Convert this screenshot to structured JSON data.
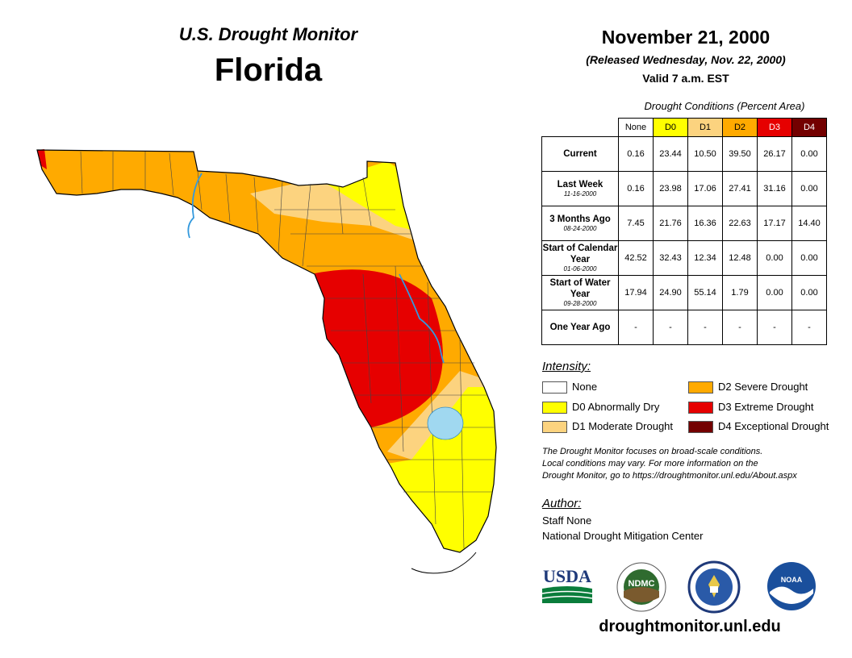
{
  "header": {
    "monitor_title": "U.S. Drought Monitor",
    "state": "Florida",
    "date": "November 21, 2000",
    "released": "(Released Wednesday, Nov. 22, 2000)",
    "valid": "Valid 7 a.m. EST"
  },
  "table": {
    "caption": "Drought Conditions (Percent Area)",
    "columns": [
      "None",
      "D0",
      "D1",
      "D2",
      "D3",
      "D4"
    ],
    "column_colors": [
      "#ffffff",
      "#ffff00",
      "#fcd37f",
      "#ffaa00",
      "#e60000",
      "#730000"
    ],
    "rows": [
      {
        "label": "Current",
        "date": "",
        "values": [
          "0.16",
          "23.44",
          "10.50",
          "39.50",
          "26.17",
          "0.00"
        ]
      },
      {
        "label": "Last Week",
        "date": "11-16-2000",
        "values": [
          "0.16",
          "23.98",
          "17.06",
          "27.41",
          "31.16",
          "0.00"
        ]
      },
      {
        "label": "3 Months Ago",
        "date": "08-24-2000",
        "values": [
          "7.45",
          "21.76",
          "16.36",
          "22.63",
          "17.17",
          "14.40"
        ]
      },
      {
        "label": "Start of Calendar Year",
        "date": "01-06-2000",
        "values": [
          "42.52",
          "32.43",
          "12.34",
          "12.48",
          "0.00",
          "0.00"
        ]
      },
      {
        "label": "Start of Water Year",
        "date": "09-28-2000",
        "values": [
          "17.94",
          "24.90",
          "55.14",
          "1.79",
          "0.00",
          "0.00"
        ]
      },
      {
        "label": "One Year Ago",
        "date": "",
        "values": [
          "-",
          "-",
          "-",
          "-",
          "-",
          "-"
        ]
      }
    ]
  },
  "legend": {
    "title": "Intensity:",
    "items": [
      {
        "label": "None",
        "color": "#ffffff"
      },
      {
        "label": "D0 Abnormally Dry",
        "color": "#ffff00"
      },
      {
        "label": "D1 Moderate Drought",
        "color": "#fcd37f"
      },
      {
        "label": "D2 Severe Drought",
        "color": "#ffaa00"
      },
      {
        "label": "D3 Extreme Drought",
        "color": "#e60000"
      },
      {
        "label": "D4 Exceptional Drought",
        "color": "#730000"
      }
    ]
  },
  "note": {
    "line1": "The Drought Monitor focuses on broad-scale conditions.",
    "line2": "Local conditions may vary. For more information on the",
    "line3": "Drought Monitor, go to https://droughtmonitor.unl.edu/About.aspx"
  },
  "author": {
    "title": "Author:",
    "name": "Staff None",
    "org": "National Drought Mitigation Center"
  },
  "logos": {
    "usda": "USDA",
    "ndmc": "NDMC",
    "noaa": "NOAA"
  },
  "footer": {
    "url": "droughtmonitor.unl.edu"
  }
}
